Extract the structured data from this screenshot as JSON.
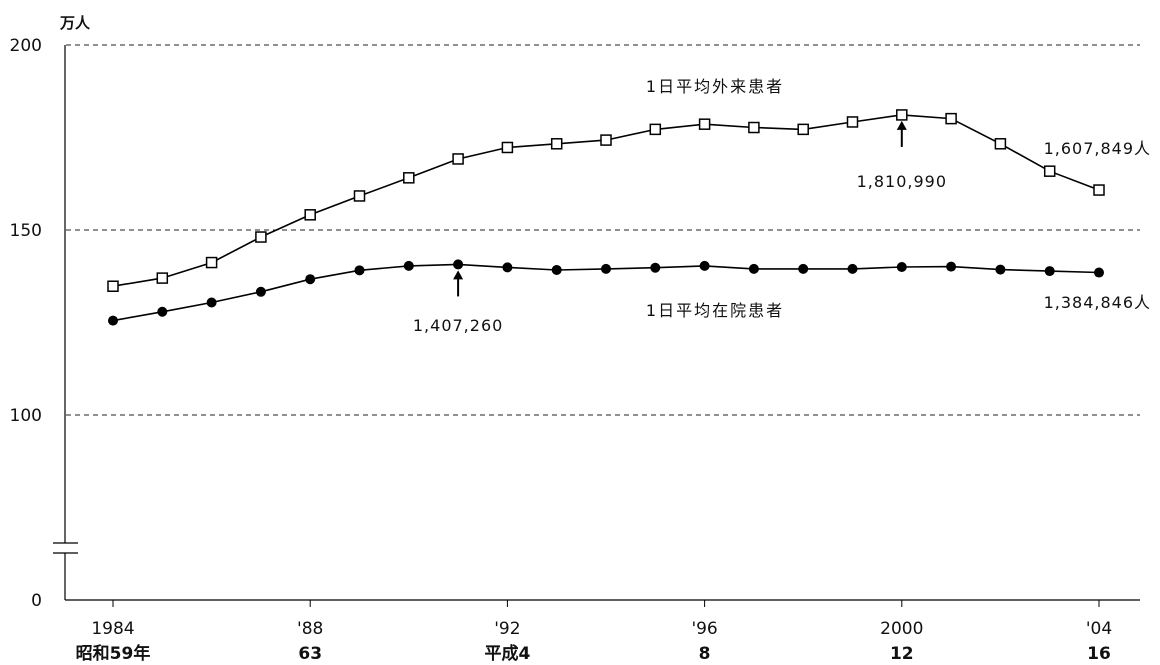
{
  "chart_data": {
    "type": "line",
    "y_unit": "万人",
    "ylim": [
      0,
      200
    ],
    "y_axis_break": true,
    "y_ticks": [
      {
        "value": 0,
        "label": "0"
      },
      {
        "value": 100,
        "label": "100"
      },
      {
        "value": 150,
        "label": "150"
      },
      {
        "value": 200,
        "label": "200"
      }
    ],
    "grid": "dashed horizontal at 100, 150, 200",
    "x": [
      1984,
      1985,
      1986,
      1987,
      1988,
      1989,
      1990,
      1991,
      1992,
      1993,
      1994,
      1995,
      1996,
      1997,
      1998,
      1999,
      2000,
      2001,
      2002,
      2003,
      2004
    ],
    "x_ticks": [
      {
        "year": 1984,
        "label": "1984",
        "era": "昭和59年"
      },
      {
        "year": 1988,
        "label": "'88",
        "era": "63"
      },
      {
        "year": 1992,
        "label": "'92",
        "era": "平成4"
      },
      {
        "year": 1996,
        "label": "'96",
        "era": "8"
      },
      {
        "year": 2000,
        "label": "2000",
        "era": "12"
      },
      {
        "year": 2004,
        "label": "'04",
        "era": "16"
      }
    ],
    "series": [
      {
        "name": "1日平均外来患者",
        "marker": "open-square",
        "color": "#000000",
        "values": [
          134.8,
          137.0,
          141.2,
          148.1,
          154.1,
          159.2,
          164.1,
          169.2,
          172.3,
          173.3,
          174.3,
          177.2,
          178.6,
          177.7,
          177.2,
          179.2,
          181.1,
          180.1,
          173.3,
          165.9,
          160.8
        ]
      },
      {
        "name": "1日平均在院患者",
        "marker": "filled-circle",
        "color": "#000000",
        "values": [
          125.5,
          127.9,
          130.4,
          133.3,
          136.7,
          139.1,
          140.3,
          140.7,
          139.9,
          139.2,
          139.5,
          139.8,
          140.3,
          139.5,
          139.5,
          139.5,
          140.0,
          140.1,
          139.3,
          138.9,
          138.5
        ]
      }
    ],
    "annotations": [
      {
        "series": 0,
        "year": 2000,
        "text": "1,810,990",
        "arrow": true
      },
      {
        "series": 0,
        "year": 2004,
        "text": "1,607,849人",
        "arrow": false
      },
      {
        "series": 1,
        "year": 1991,
        "text": "1,407,260",
        "arrow": true
      },
      {
        "series": 1,
        "year": 2004,
        "text": "1,384,846人",
        "arrow": false
      }
    ]
  }
}
